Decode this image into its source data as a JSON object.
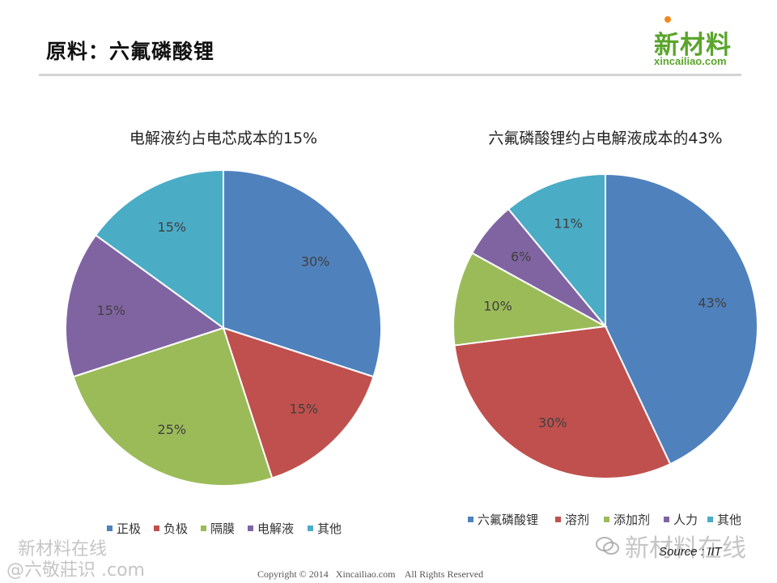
{
  "slide": {
    "title": "原料：六氟磷酸锂"
  },
  "logo": {
    "name": "新材料",
    "url": "xincailiao.com"
  },
  "chart_data": [
    {
      "type": "pie",
      "title": "电解液约占电芯成本的15%",
      "categories": [
        "正极",
        "负极",
        "隔膜",
        "电解液",
        "其他"
      ],
      "values": [
        30,
        15,
        25,
        15,
        15
      ],
      "labels": [
        "30%",
        "15%",
        "25%",
        "15%",
        "15%"
      ],
      "colors": [
        "#4f81bd",
        "#c0504d",
        "#9bbb59",
        "#8064a2",
        "#4bacc6"
      ],
      "legend_position": "bottom"
    },
    {
      "type": "pie",
      "title": "六氟磷酸锂约占电解液成本的43%",
      "categories": [
        "六氟磷酸锂",
        "溶剂",
        "添加剂",
        "人力",
        "其他"
      ],
      "values": [
        43,
        30,
        10,
        6,
        11
      ],
      "labels": [
        "43%",
        "30%",
        "10%",
        "6%",
        "11%"
      ],
      "colors": [
        "#4f81bd",
        "#c0504d",
        "#9bbb59",
        "#8064a2",
        "#4bacc6"
      ],
      "legend_position": "bottom"
    }
  ],
  "source": "Source : IIT",
  "copyright": "Copyright © 2014   Xincailiao.com    All Rights Reserved",
  "watermarks": {
    "left_line1": "新材料在线",
    "left_line2": "@六敬莊识 .com",
    "right": "新材料在线"
  }
}
